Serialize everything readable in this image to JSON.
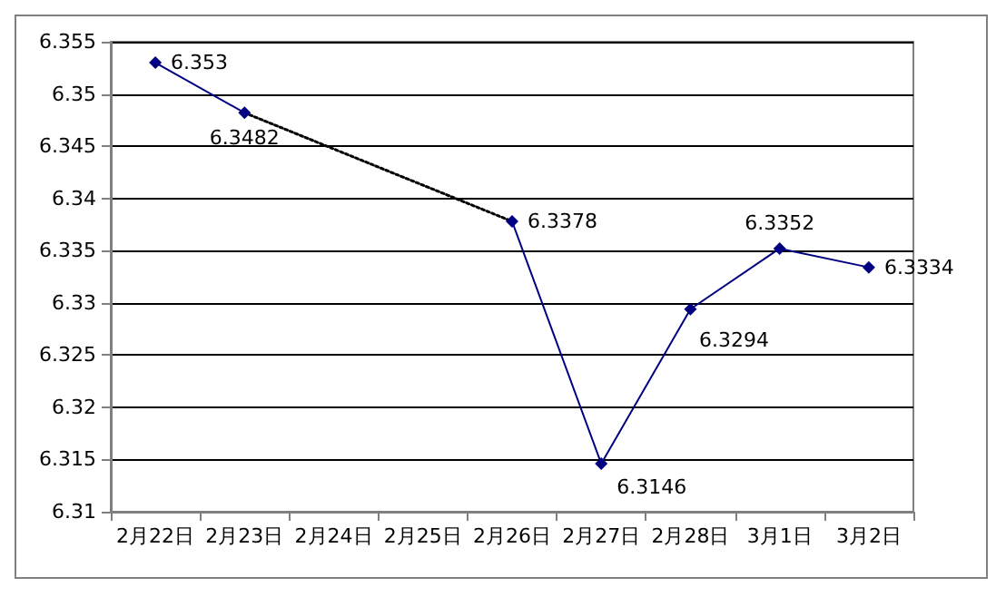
{
  "chart_data": {
    "type": "line",
    "categories": [
      "2月22日",
      "2月23日",
      "2月24日",
      "2月25日",
      "2月26日",
      "2月27日",
      "2月28日",
      "3月1日",
      "3月2日"
    ],
    "series": [
      {
        "color": "#000080",
        "values": [
          6.353,
          6.3482,
          null,
          null,
          6.3378,
          6.3146,
          6.3294,
          6.3352,
          6.3334
        ],
        "line_style": "solid",
        "marker": "diamond",
        "data_labels": true
      },
      {
        "color": "#000000",
        "values": [
          null,
          6.3482,
          null,
          null,
          6.3378,
          null,
          null,
          null,
          null
        ],
        "line_style": "dotted",
        "marker": "none",
        "data_labels": false
      }
    ],
    "ylim": [
      6.31,
      6.355
    ],
    "yticks": [
      6.31,
      6.315,
      6.32,
      6.325,
      6.33,
      6.335,
      6.34,
      6.345,
      6.35,
      6.355
    ],
    "grid": "y"
  }
}
